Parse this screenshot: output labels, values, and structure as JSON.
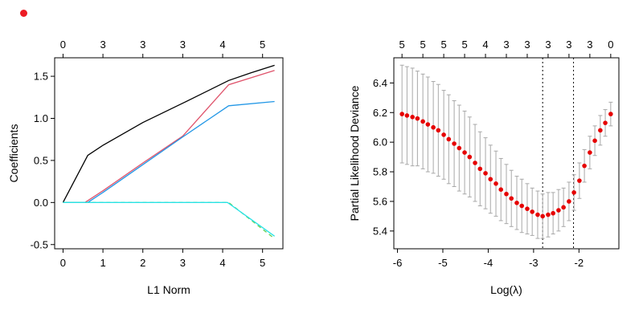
{
  "figure": {
    "background": "#ffffff",
    "indicator_dot_color": "#ec1c24"
  },
  "chart_data": [
    {
      "id": "coefficient-path",
      "type": "line",
      "title": "",
      "xlabel": "L1 Norm",
      "ylabel": "Coefficients",
      "xlim": [
        -0.21,
        5.51
      ],
      "ylim": [
        -0.55,
        1.72
      ],
      "x_ticks": [
        0,
        1,
        2,
        3,
        4,
        5
      ],
      "x_tick_labels": [
        "0",
        "1",
        "2",
        "3",
        "4",
        "5"
      ],
      "y_ticks": [
        -0.5,
        0,
        0.5,
        1,
        1.5
      ],
      "y_tick_labels": [
        "-0.5",
        "0.0",
        "0.5",
        "1.0",
        "1.5"
      ],
      "top_axis": {
        "positions": [
          0,
          1,
          2,
          3,
          4,
          5
        ],
        "labels": [
          "0",
          "3",
          "3",
          "3",
          "4",
          "5"
        ]
      },
      "grid": false,
      "legend": null,
      "series": [
        {
          "name": "coef-path-1",
          "color": "#000000",
          "dash": false,
          "points": [
            [
              0,
              0
            ],
            [
              0.62,
              0.56
            ],
            [
              1,
              0.68
            ],
            [
              2,
              0.95
            ],
            [
              3,
              1.18
            ],
            [
              4.15,
              1.45
            ],
            [
              4.7,
              1.54
            ],
            [
              5.3,
              1.63
            ]
          ]
        },
        {
          "name": "coef-path-2",
          "color": "#df536b",
          "dash": false,
          "points": [
            [
              0,
              0
            ],
            [
              0.55,
              0
            ],
            [
              1,
              0.14
            ],
            [
              2,
              0.47
            ],
            [
              3,
              0.79
            ],
            [
              4.15,
              1.4
            ],
            [
              5.3,
              1.57
            ]
          ]
        },
        {
          "name": "coef-path-3",
          "color": "#2297e6",
          "dash": false,
          "points": [
            [
              0,
              0
            ],
            [
              0.62,
              0
            ],
            [
              1,
              0.12
            ],
            [
              2,
              0.45
            ],
            [
              3,
              0.78
            ],
            [
              4.15,
              1.15
            ],
            [
              5.3,
              1.2
            ]
          ]
        },
        {
          "name": "coef-path-4",
          "color": "#61d04f",
          "dash": true,
          "points": [
            [
              0,
              0
            ],
            [
              4.15,
              0
            ],
            [
              5.3,
              -0.43
            ]
          ]
        },
        {
          "name": "coef-path-5",
          "color": "#28e2e5",
          "dash": false,
          "points": [
            [
              0,
              0
            ],
            [
              4.12,
              0
            ],
            [
              5.3,
              -0.4
            ]
          ]
        }
      ]
    },
    {
      "id": "cv-deviance",
      "type": "scatter",
      "title": "",
      "xlabel": "Log(λ)",
      "ylabel": "Partial Likelihood Deviance",
      "xlim": [
        -6.08,
        -1.12
      ],
      "ylim": [
        5.28,
        6.57
      ],
      "x_ticks": [
        -6,
        -5,
        -4,
        -3,
        -2
      ],
      "x_tick_labels": [
        "-6",
        "-5",
        "-4",
        "-3",
        "-2"
      ],
      "y_ticks": [
        5.4,
        5.6,
        5.8,
        6,
        6.2,
        6.4
      ],
      "y_tick_labels": [
        "5.4",
        "5.6",
        "5.8",
        "6.0",
        "6.2",
        "6.4"
      ],
      "top_axis": {
        "positions": [
          -5.9,
          -5.44,
          -4.98,
          -4.52,
          -4.06,
          -3.6,
          -3.14,
          -2.68,
          -2.22,
          -1.76,
          -1.3
        ],
        "labels": [
          "5",
          "5",
          "5",
          "5",
          "4",
          "3",
          "3",
          "3",
          "3",
          "3",
          "0"
        ]
      },
      "grid": false,
      "point_color": "#e60000",
      "errorbar_color": "#a8a8a8",
      "vlines": [
        {
          "name": "lambda-min-line",
          "x": -2.8,
          "style": "dotted"
        },
        {
          "name": "lambda-1se-line",
          "x": -2.12,
          "style": "dotted"
        }
      ],
      "points": [
        [
          -5.9,
          6.19,
          0.33
        ],
        [
          -5.79,
          6.18,
          0.33
        ],
        [
          -5.67,
          6.17,
          0.33
        ],
        [
          -5.56,
          6.16,
          0.32
        ],
        [
          -5.44,
          6.14,
          0.32
        ],
        [
          -5.33,
          6.12,
          0.32
        ],
        [
          -5.21,
          6.1,
          0.31
        ],
        [
          -5.1,
          6.08,
          0.31
        ],
        [
          -4.98,
          6.05,
          0.3
        ],
        [
          -4.87,
          6.02,
          0.3
        ],
        [
          -4.75,
          5.99,
          0.29
        ],
        [
          -4.64,
          5.96,
          0.29
        ],
        [
          -4.52,
          5.93,
          0.28
        ],
        [
          -4.41,
          5.9,
          0.27
        ],
        [
          -4.29,
          5.86,
          0.26
        ],
        [
          -4.18,
          5.82,
          0.25
        ],
        [
          -4.06,
          5.79,
          0.24
        ],
        [
          -3.95,
          5.75,
          0.23
        ],
        [
          -3.83,
          5.72,
          0.22
        ],
        [
          -3.72,
          5.68,
          0.21
        ],
        [
          -3.6,
          5.65,
          0.2
        ],
        [
          -3.49,
          5.62,
          0.19
        ],
        [
          -3.37,
          5.59,
          0.18
        ],
        [
          -3.26,
          5.57,
          0.18
        ],
        [
          -3.14,
          5.55,
          0.17
        ],
        [
          -3.03,
          5.53,
          0.16
        ],
        [
          -2.91,
          5.51,
          0.16
        ],
        [
          -2.8,
          5.5,
          0.15
        ],
        [
          -2.68,
          5.51,
          0.15
        ],
        [
          -2.57,
          5.52,
          0.14
        ],
        [
          -2.45,
          5.54,
          0.14
        ],
        [
          -2.34,
          5.56,
          0.13
        ],
        [
          -2.22,
          5.6,
          0.13
        ],
        [
          -2.11,
          5.66,
          0.12
        ],
        [
          -1.99,
          5.74,
          0.12
        ],
        [
          -1.88,
          5.84,
          0.11
        ],
        [
          -1.76,
          5.93,
          0.11
        ],
        [
          -1.65,
          6.01,
          0.1
        ],
        [
          -1.53,
          6.08,
          0.1
        ],
        [
          -1.42,
          6.13,
          0.09
        ],
        [
          -1.3,
          6.19,
          0.08
        ]
      ]
    }
  ]
}
